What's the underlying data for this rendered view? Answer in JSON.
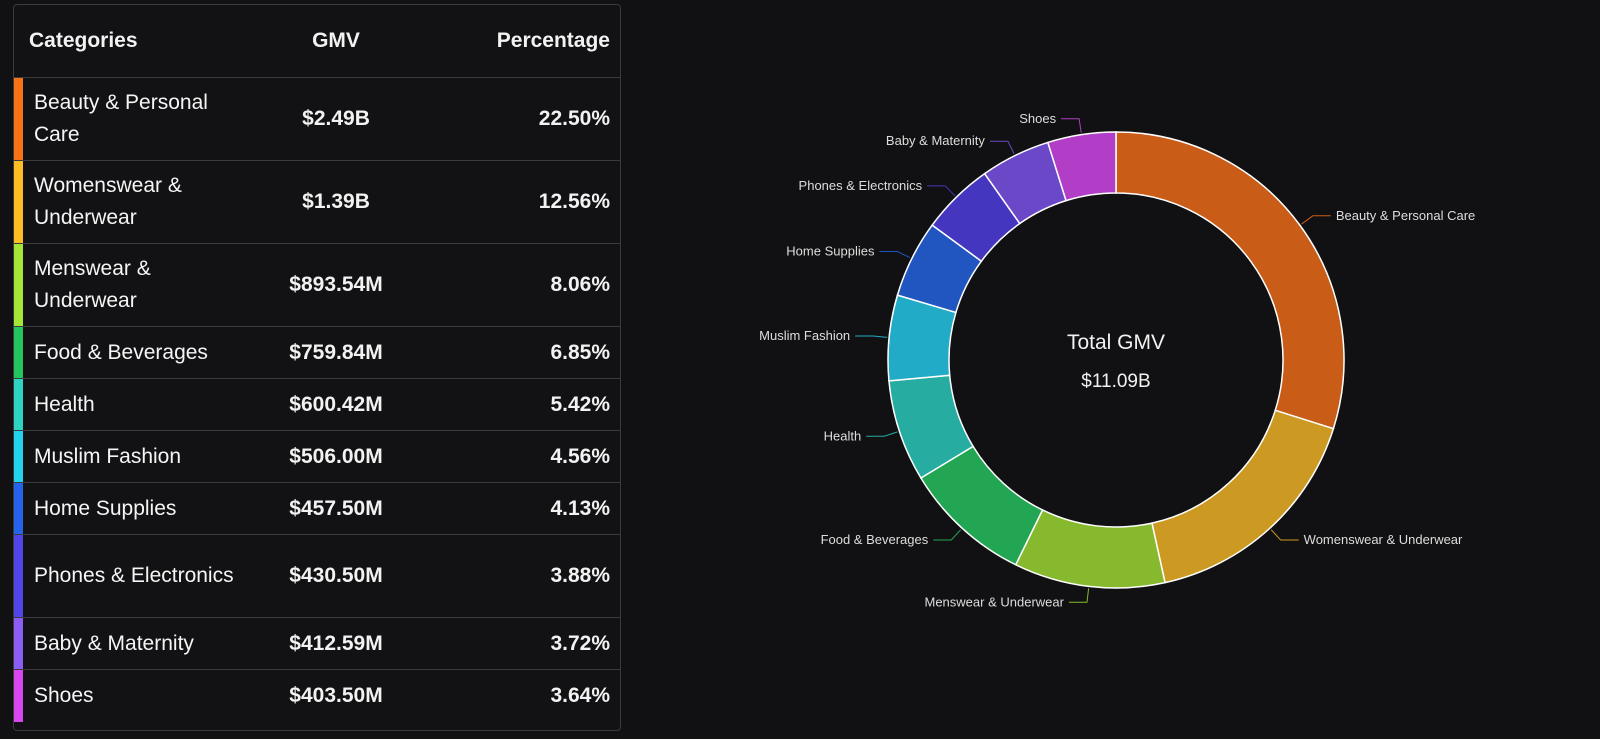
{
  "table": {
    "headers": {
      "category": "Categories",
      "gmv": "GMV",
      "percentage": "Percentage"
    },
    "rows": [
      {
        "category": "Beauty & Personal Care",
        "gmv": "$2.49B",
        "percentage": "22.50%",
        "color": "#f97316"
      },
      {
        "category": "Womenswear & Underwear",
        "gmv": "$1.39B",
        "percentage": "12.56%",
        "color": "#fbbf24"
      },
      {
        "category": "Menswear & Underwear",
        "gmv": "$893.54M",
        "percentage": "8.06%",
        "color": "#a3e635"
      },
      {
        "category": "Food & Beverages",
        "gmv": "$759.84M",
        "percentage": "6.85%",
        "color": "#22c55e"
      },
      {
        "category": "Health",
        "gmv": "$600.42M",
        "percentage": "5.42%",
        "color": "#2dd4bf"
      },
      {
        "category": "Muslim Fashion",
        "gmv": "$506.00M",
        "percentage": "4.56%",
        "color": "#22d3ee"
      },
      {
        "category": "Home Supplies",
        "gmv": "$457.50M",
        "percentage": "4.13%",
        "color": "#2563eb"
      },
      {
        "category": "Phones & Electronics",
        "gmv": "$430.50M",
        "percentage": "3.88%",
        "color": "#4f46e5"
      },
      {
        "category": "Baby & Maternity",
        "gmv": "$412.59M",
        "percentage": "3.72%",
        "color": "#8b5cf6"
      },
      {
        "category": "Shoes",
        "gmv": "$403.50M",
        "percentage": "3.64%",
        "color": "#d946ef"
      }
    ]
  },
  "chart_data": {
    "type": "pie",
    "style": "donut",
    "center_title": "Total GMV",
    "center_value": "$11.09B",
    "categories": [
      "Beauty & Personal Care",
      "Womenswear & Underwear",
      "Menswear & Underwear",
      "Food & Beverages",
      "Health",
      "Muslim Fashion",
      "Home Supplies",
      "Phones & Electronics",
      "Baby & Maternity",
      "Shoes"
    ],
    "values": [
      22.5,
      12.56,
      8.06,
      6.85,
      5.42,
      4.56,
      4.13,
      3.88,
      3.72,
      3.64
    ],
    "colors": [
      "#c95c17",
      "#cc9a22",
      "#87b92e",
      "#22a653",
      "#26aca0",
      "#21abc6",
      "#2156c0",
      "#4536bf",
      "#6a48c8",
      "#b23ec8"
    ]
  }
}
